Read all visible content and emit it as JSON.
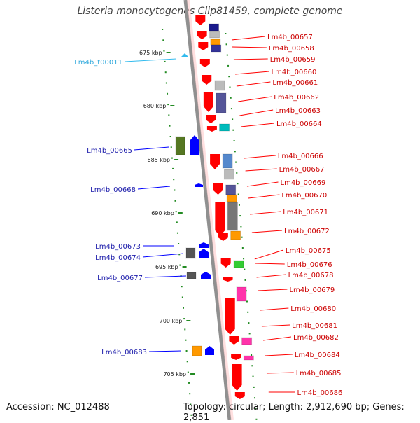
{
  "title": "Listeria monocytogenes Clip81459, complete genome",
  "footer": {
    "accession": "Accession: NC_012488",
    "topology": "Topology: circular; Length: 2,912,690 bp; Genes: 2,851"
  },
  "colors": {
    "forward": "#ff0000",
    "reverse": "#0000ff",
    "trna": "#33bbee",
    "backbone": "#888888",
    "tick": "#228B22"
  },
  "scale": {
    "unit": "kbp",
    "ticks": [
      675,
      680,
      685,
      690,
      695,
      700,
      705
    ],
    "tick_labels": [
      "675 kbp",
      "680 kbp",
      "685 kbp",
      "690 kbp",
      "695 kbp",
      "700 kbp",
      "705 kbp"
    ]
  },
  "labels_right": [
    "Lm4b_00657",
    "Lm4b_00658",
    "Lm4b_00659",
    "Lm4b_00660",
    "Lm4b_00661",
    "Lm4b_00662",
    "Lm4b_00663",
    "Lm4b_00664",
    "Lm4b_00666",
    "Lm4b_00667",
    "Lm4b_00669",
    "Lm4b_00670",
    "Lm4b_00671",
    "Lm4b_00672",
    "Lm4b_00675",
    "Lm4b_00676",
    "Lm4b_00678",
    "Lm4b_00679",
    "Lm4b_00680",
    "Lm4b_00681",
    "Lm4b_00682",
    "Lm4b_00684",
    "Lm4b_00685",
    "Lm4b_00686"
  ],
  "labels_left": [
    "Lm4b_t00011",
    "Lm4b_00665",
    "Lm4b_00668",
    "Lm4b_00673",
    "Lm4b_00674",
    "Lm4b_00677",
    "Lm4b_00683"
  ]
}
